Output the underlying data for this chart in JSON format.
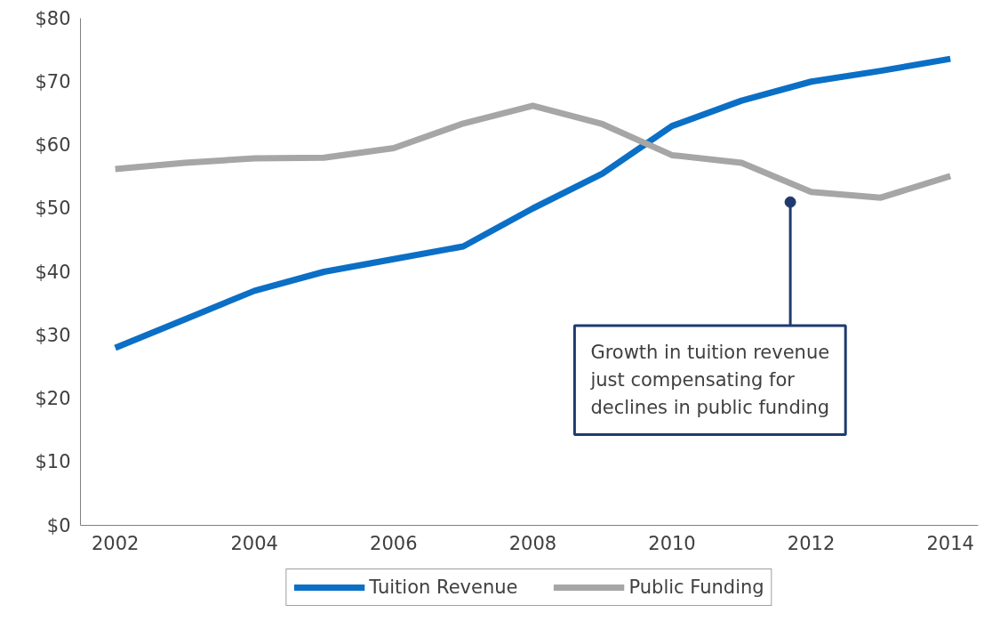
{
  "chart_data": {
    "type": "line",
    "x": [
      2002,
      2003,
      2004,
      2005,
      2006,
      2007,
      2008,
      2009,
      2010,
      2011,
      2012,
      2013,
      2014
    ],
    "series": [
      {
        "name": "Tuition Revenue",
        "color": "#0b6fc6",
        "values": [
          28,
          32.5,
          37,
          40,
          42,
          44,
          50,
          55.5,
          63,
          67,
          70,
          71.7,
          73.6
        ]
      },
      {
        "name": "Public Funding",
        "color": "#a6a6a6",
        "values": [
          56.2,
          57.2,
          57.9,
          58,
          59.5,
          63.4,
          66.2,
          63.3,
          58.4,
          57.2,
          52.6,
          51.7,
          55.1
        ]
      }
    ],
    "xlim": [
      2001.5,
      2014.4
    ],
    "xticks": [
      2002,
      2004,
      2006,
      2008,
      2010,
      2012,
      2014
    ],
    "ylim": [
      0,
      80
    ],
    "yticks": [
      {
        "value": 0,
        "label": "$0"
      },
      {
        "value": 10,
        "label": "$10"
      },
      {
        "value": 20,
        "label": "$20"
      },
      {
        "value": 30,
        "label": "$30"
      },
      {
        "value": 40,
        "label": "$40"
      },
      {
        "value": 50,
        "label": "$50"
      },
      {
        "value": 60,
        "label": "$60"
      },
      {
        "value": 70,
        "label": "$70"
      },
      {
        "value": 80,
        "label": "$80"
      }
    ],
    "grid": false,
    "legend": "bottom",
    "marker": "none",
    "line_style": "solid",
    "annotations": [
      {
        "text": "Growth in tuition revenue just compensating for declines in public funding",
        "x": 2011.7,
        "y": 51
      }
    ]
  }
}
